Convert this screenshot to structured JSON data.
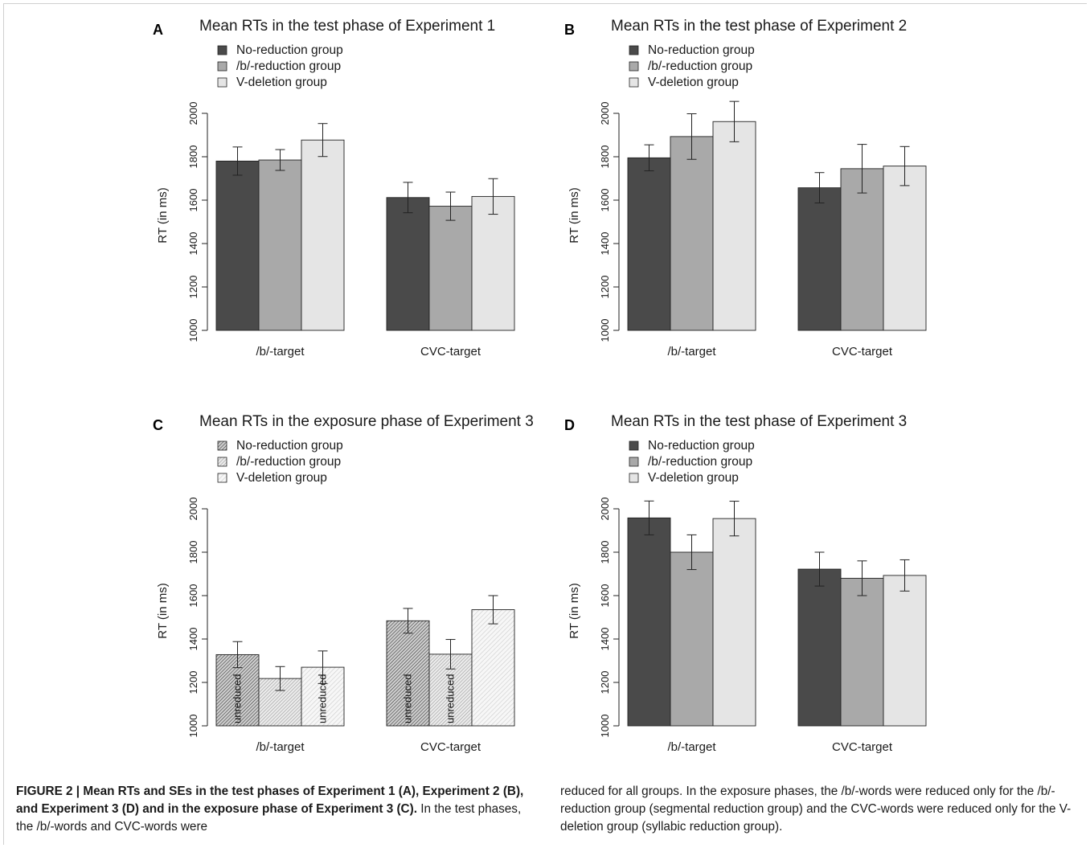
{
  "chart_data": [
    {
      "type": "bar",
      "panel": "A",
      "title": "Mean RTs in the test phase of Experiment 1",
      "ylabel": "RT (in ms)",
      "ylim": [
        1000,
        2000
      ],
      "yticks": [
        1000,
        1200,
        1400,
        1600,
        1800,
        2000
      ],
      "categories": [
        "/b/-target",
        "CVC-target"
      ],
      "legend_placement": "top-left",
      "series": [
        {
          "name": "No-reduction group",
          "color": "#4a4a4a",
          "pattern": "solid",
          "values": [
            1780,
            1612
          ],
          "errors": [
            65,
            70
          ]
        },
        {
          "name": "/b/-reduction group",
          "color": "#a9a9a9",
          "pattern": "solid",
          "values": [
            1785,
            1572
          ],
          "errors": [
            48,
            65
          ]
        },
        {
          "name": "V-deletion group",
          "color": "#e5e5e5",
          "pattern": "solid",
          "values": [
            1877,
            1617
          ],
          "errors": [
            76,
            82
          ]
        }
      ],
      "bar_labels": []
    },
    {
      "type": "bar",
      "panel": "B",
      "title": "Mean RTs in the test phase of Experiment 2",
      "ylabel": "RT (in ms)",
      "ylim": [
        1000,
        2000
      ],
      "yticks": [
        1000,
        1200,
        1400,
        1600,
        1800,
        2000
      ],
      "categories": [
        "/b/-target",
        "CVC-target"
      ],
      "legend_placement": "top-left",
      "series": [
        {
          "name": "No-reduction group",
          "color": "#4a4a4a",
          "pattern": "solid",
          "values": [
            1795,
            1657
          ],
          "errors": [
            60,
            70
          ]
        },
        {
          "name": "/b/-reduction group",
          "color": "#a9a9a9",
          "pattern": "solid",
          "values": [
            1893,
            1745
          ],
          "errors": [
            105,
            112
          ]
        },
        {
          "name": "V-deletion group",
          "color": "#e5e5e5",
          "pattern": "solid",
          "values": [
            1962,
            1757
          ],
          "errors": [
            93,
            90
          ]
        }
      ],
      "bar_labels": []
    },
    {
      "type": "bar",
      "panel": "C",
      "title": "Mean RTs in the exposure phase of Experiment 3",
      "ylabel": "RT (in ms)",
      "ylim": [
        1000,
        2000
      ],
      "yticks": [
        1000,
        1200,
        1400,
        1600,
        1800,
        2000
      ],
      "categories": [
        "/b/-target",
        "CVC-target"
      ],
      "legend_placement": "top-left",
      "series": [
        {
          "name": "No-reduction group",
          "color": "#4a4a4a",
          "pattern": "hatch",
          "values": [
            1328,
            1484
          ],
          "errors": [
            60,
            57
          ]
        },
        {
          "name": "/b/-reduction group",
          "color": "#a9a9a9",
          "pattern": "hatch",
          "values": [
            1218,
            1330
          ],
          "errors": [
            55,
            68
          ]
        },
        {
          "name": "V-deletion group",
          "color": "#e5e5e5",
          "pattern": "hatch",
          "values": [
            1270,
            1535
          ],
          "errors": [
            75,
            65
          ]
        }
      ],
      "bar_labels": [
        {
          "series": 0,
          "category": 0,
          "text": "unreduced"
        },
        {
          "series": 2,
          "category": 0,
          "text": "unreduced"
        },
        {
          "series": 0,
          "category": 1,
          "text": "unreduced"
        },
        {
          "series": 1,
          "category": 1,
          "text": "unreduced"
        }
      ]
    },
    {
      "type": "bar",
      "panel": "D",
      "title": "Mean RTs in the test phase of Experiment 3",
      "ylabel": "RT (in ms)",
      "ylim": [
        1000,
        2000
      ],
      "yticks": [
        1000,
        1200,
        1400,
        1600,
        1800,
        2000
      ],
      "categories": [
        "/b/-target",
        "CVC-target"
      ],
      "legend_placement": "top-left",
      "series": [
        {
          "name": "No-reduction group",
          "color": "#4a4a4a",
          "pattern": "solid",
          "values": [
            1958,
            1722
          ],
          "errors": [
            78,
            78
          ]
        },
        {
          "name": "/b/-reduction group",
          "color": "#a9a9a9",
          "pattern": "solid",
          "values": [
            1800,
            1680
          ],
          "errors": [
            80,
            80
          ]
        },
        {
          "name": "V-deletion group",
          "color": "#e5e5e5",
          "pattern": "solid",
          "values": [
            1955,
            1693
          ],
          "errors": [
            80,
            72
          ]
        }
      ],
      "bar_labels": []
    }
  ],
  "caption": {
    "bold": "FIGURE 2 | Mean RTs and SEs in the test phases of Experiment 1 (A), Experiment 2 (B), and Experiment 3 (D) and in the exposure phase of Experiment 3 (C).",
    "left_rest": " In the test phases, the /b/-words and CVC-words were",
    "right": "reduced for all groups. In the exposure phases, the /b/-words were reduced only for the /b/-reduction group (segmental reduction group) and the CVC-words were reduced only for the V-deletion group (syllabic reduction group)."
  }
}
